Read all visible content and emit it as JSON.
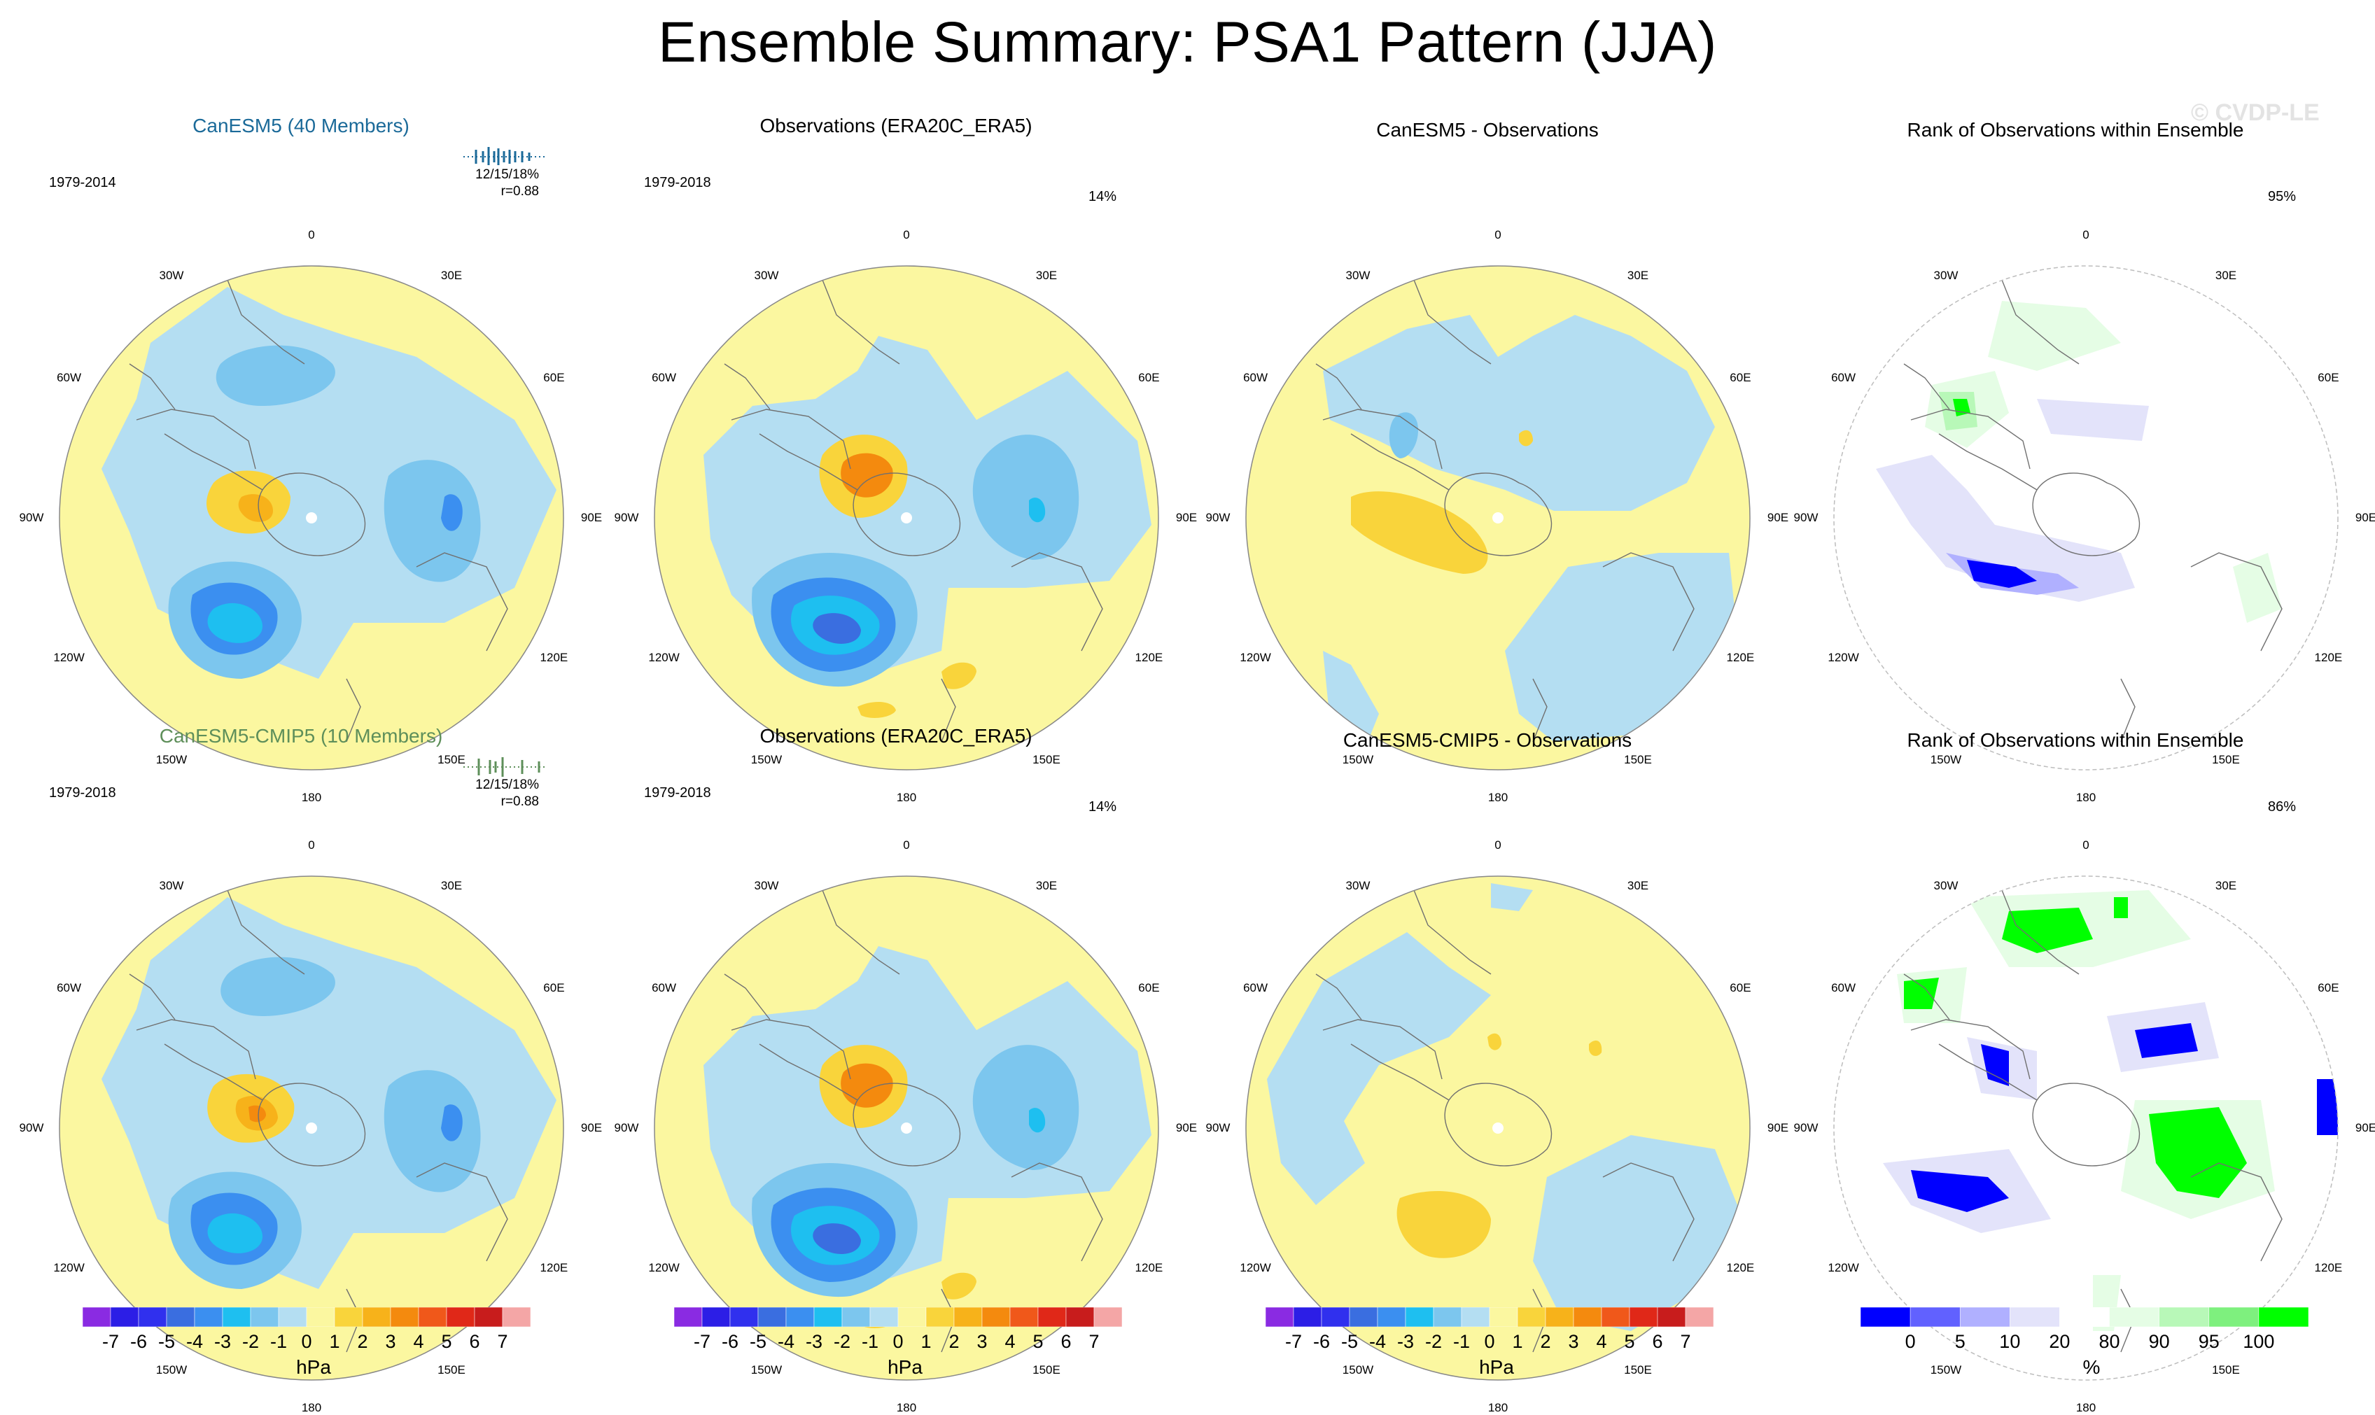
{
  "title": "Ensemble Summary: PSA1 Pattern (JJA)",
  "watermark": "© CVDP-LE",
  "longitude_labels": [
    "0",
    "30E",
    "60E",
    "90E",
    "120E",
    "150E",
    "180",
    "150W",
    "120W",
    "90W",
    "60W",
    "30W"
  ],
  "row1": {
    "model": {
      "title": "CanESM5 (40 Members)",
      "period": "1979-2014",
      "stats": "12/15/18%",
      "corr": "r=0.88"
    },
    "obs": {
      "title": "Observations (ERA20C_ERA5)",
      "period": "1979-2018",
      "pct": "14%"
    },
    "diff": {
      "title": "CanESM5 - Observations"
    },
    "rank": {
      "title": "Rank of Observations within Ensemble",
      "pct": "95%"
    }
  },
  "row2": {
    "model": {
      "title": "CanESM5-CMIP5 (10 Members)",
      "period": "1979-2018",
      "stats": "12/15/18%",
      "corr": "r=0.88"
    },
    "obs": {
      "title": "Observations (ERA20C_ERA5)",
      "period": "1979-2018",
      "pct": "14%"
    },
    "diff": {
      "title": "CanESM5-CMIP5 - Observations"
    },
    "rank": {
      "title": "Rank of Observations within Ensemble",
      "pct": "86%"
    }
  },
  "colorbar_hpa": {
    "unit": "hPa",
    "ticks": [
      "-7",
      "-6",
      "-5",
      "-4",
      "-3",
      "-2",
      "-1",
      "0",
      "1",
      "2",
      "3",
      "4",
      "5",
      "6",
      "7"
    ],
    "colors": [
      "#8a2be2",
      "#2c1ee6",
      "#3030ee",
      "#3a6ee0",
      "#3b8ff0",
      "#1ebff0",
      "#7cc6ee",
      "#b4def2",
      "#fbf7a0",
      "#f9d43b",
      "#f7b21a",
      "#f48a0e",
      "#f0581a",
      "#e02818",
      "#c81c1c",
      "#f4a6a6"
    ]
  },
  "colorbar_rank": {
    "unit": "%",
    "ticks": [
      "0",
      "5",
      "10",
      "20",
      "80",
      "90",
      "95",
      "100"
    ],
    "colors": [
      "#0000ff",
      "#6161ff",
      "#b0b0ff",
      "#e3e3fa",
      "#ffffff",
      "#e5fde5",
      "#b8f8b8",
      "#7ef07e",
      "#00ff00"
    ]
  }
}
